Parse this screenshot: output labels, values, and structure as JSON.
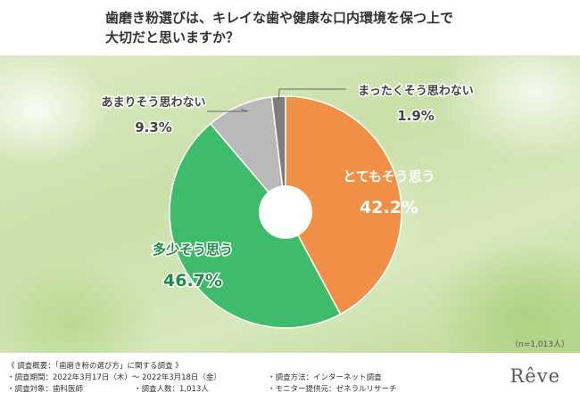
{
  "chart_data": {
    "type": "pie",
    "title": "歯磨き粉選びは、キレイな歯や健康な口内環境を保つ上で大切だと思いますか？",
    "title_lines": [
      "歯磨き粉選びは、キレイな歯や健康な口内環境を保つ上で",
      "大切だと思いますか？"
    ],
    "note": "（n=1,013人）",
    "slices": [
      {
        "label": "とてもそう思う",
        "value_text": "42.2%",
        "value": 42.2,
        "color": "#f28f46"
      },
      {
        "label": "多少そう思う",
        "value_text": "46.7%",
        "value": 46.7,
        "color": "#3ebc6c"
      },
      {
        "label": "あまりそう思わない",
        "value_text": "9.3%",
        "value": 9.3,
        "color": "#b9b9b9"
      },
      {
        "label": "まったくそう思わない",
        "value_text": "1.9%",
        "value": 1.9,
        "color": "#7d7d7d"
      }
    ]
  },
  "footer": {
    "heading": "《 調査概要：「歯磨き粉の選び方」に関する調査 》",
    "period": "・調査期間：2022年3月17日（木）～ 2022年3月18日（金）",
    "method": "・調査方法：インターネット調査",
    "target": "・調査対象：歯科医師",
    "count": "・調査人数：1,013人",
    "provider": "・モニター提供元：ゼネラルリサーチ"
  },
  "brand": {
    "logo_text": "Rêve"
  }
}
